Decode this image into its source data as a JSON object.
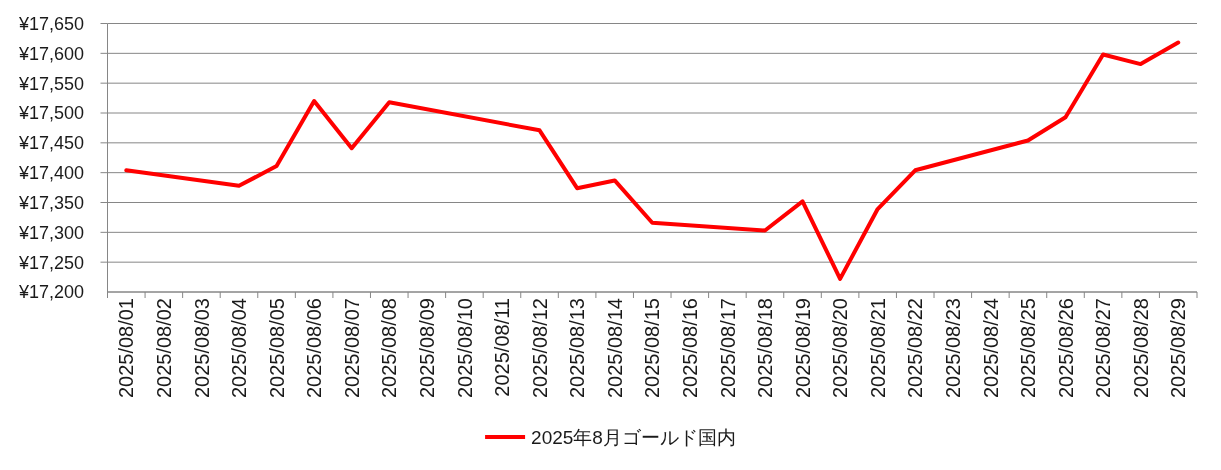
{
  "chart_data": {
    "type": "line",
    "x": [
      "2025-08-01",
      "2025-08-04",
      "2025-08-05",
      "2025-08-06",
      "2025-08-07",
      "2025-08-08",
      "2025-08-12",
      "2025-08-13",
      "2025-08-14",
      "2025-08-15",
      "2025-08-18",
      "2025-08-19",
      "2025-08-20",
      "2025-08-21",
      "2025-08-22",
      "2025-08-25",
      "2025-08-26",
      "2025-08-27",
      "2025-08-28",
      "2025-08-29"
    ],
    "series": [
      {
        "name": "2025年8月ゴールド国内",
        "color": "#ff0000",
        "values": [
          17404,
          17378,
          17411,
          17520,
          17441,
          17518,
          17471,
          17374,
          17387,
          17316,
          17303,
          17352,
          17222,
          17339,
          17404,
          17454,
          17493,
          17598,
          17582,
          17618
        ]
      }
    ],
    "xlim": [
      "2025-07-31T12:00",
      "2025-08-29T12:00"
    ],
    "xticks": [
      {
        "value": "2025-08-01",
        "label": "2025/08/01"
      },
      {
        "value": "2025-08-02",
        "label": "2025/08/02"
      },
      {
        "value": "2025-08-03",
        "label": "2025/08/03"
      },
      {
        "value": "2025-08-04",
        "label": "2025/08/04"
      },
      {
        "value": "2025-08-05",
        "label": "2025/08/05"
      },
      {
        "value": "2025-08-06",
        "label": "2025/08/06"
      },
      {
        "value": "2025-08-07",
        "label": "2025/08/07"
      },
      {
        "value": "2025-08-08",
        "label": "2025/08/08"
      },
      {
        "value": "2025-08-09",
        "label": "2025/08/09"
      },
      {
        "value": "2025-08-10",
        "label": "2025/08/10"
      },
      {
        "value": "2025-08-11",
        "label": "2025/08/11"
      },
      {
        "value": "2025-08-12",
        "label": "2025/08/12"
      },
      {
        "value": "2025-08-13",
        "label": "2025/08/13"
      },
      {
        "value": "2025-08-14",
        "label": "2025/08/14"
      },
      {
        "value": "2025-08-15",
        "label": "2025/08/15"
      },
      {
        "value": "2025-08-16",
        "label": "2025/08/16"
      },
      {
        "value": "2025-08-17",
        "label": "2025/08/17"
      },
      {
        "value": "2025-08-18",
        "label": "2025/08/18"
      },
      {
        "value": "2025-08-19",
        "label": "2025/08/19"
      },
      {
        "value": "2025-08-20",
        "label": "2025/08/20"
      },
      {
        "value": "2025-08-21",
        "label": "2025/08/21"
      },
      {
        "value": "2025-08-22",
        "label": "2025/08/22"
      },
      {
        "value": "2025-08-23",
        "label": "2025/08/23"
      },
      {
        "value": "2025-08-24",
        "label": "2025/08/24"
      },
      {
        "value": "2025-08-25",
        "label": "2025/08/25"
      },
      {
        "value": "2025-08-26",
        "label": "2025/08/26"
      },
      {
        "value": "2025-08-27",
        "label": "2025/08/27"
      },
      {
        "value": "2025-08-28",
        "label": "2025/08/28"
      },
      {
        "value": "2025-08-29",
        "label": "2025/08/29"
      }
    ],
    "ylim": [
      17200,
      17650
    ],
    "yticks": [
      {
        "value": 17200,
        "label": "¥17,200"
      },
      {
        "value": 17250,
        "label": "¥17,250"
      },
      {
        "value": 17300,
        "label": "¥17,300"
      },
      {
        "value": 17350,
        "label": "¥17,350"
      },
      {
        "value": 17400,
        "label": "¥17,400"
      },
      {
        "value": 17450,
        "label": "¥17,450"
      },
      {
        "value": 17500,
        "label": "¥17,500"
      },
      {
        "value": 17550,
        "label": "¥17,550"
      },
      {
        "value": 17600,
        "label": "¥17,600"
      },
      {
        "value": 17650,
        "label": "¥17,650"
      }
    ],
    "grid": "y",
    "legend": "bottom",
    "line_style": "solid"
  }
}
